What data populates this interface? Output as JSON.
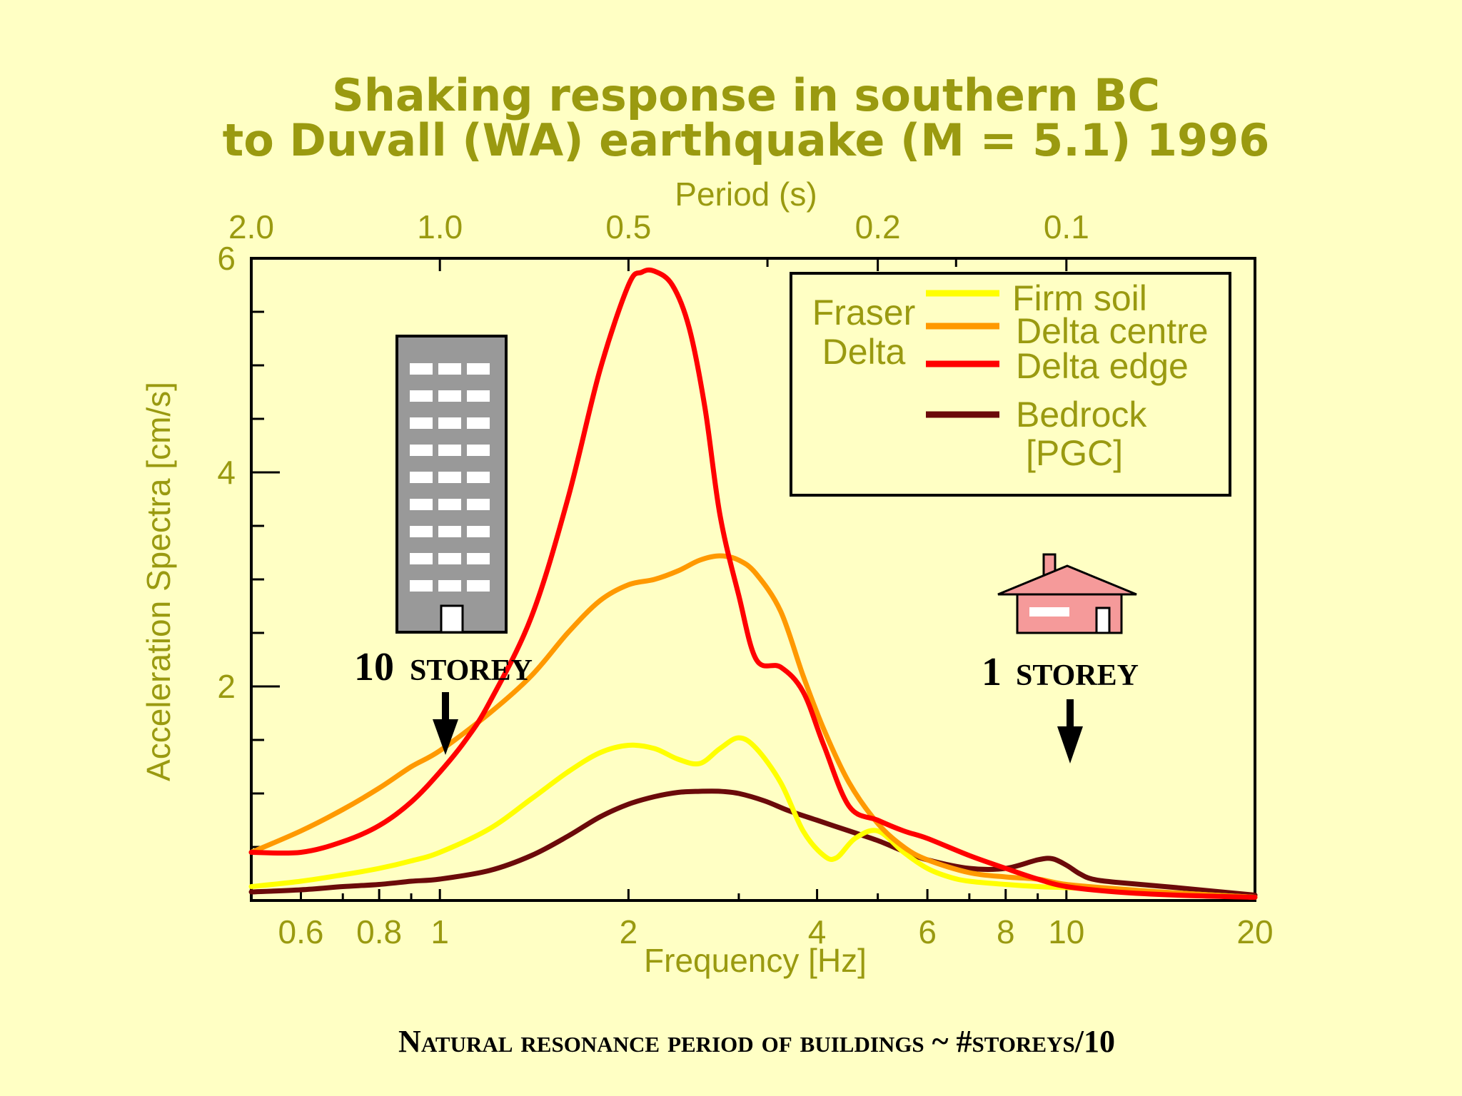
{
  "chart_data": {
    "type": "line",
    "title_line1": "Shaking response in southern BC",
    "title_line2": "to Duvall (WA) earthquake (M = 5.1) 1996",
    "xlabel": "Frequency [Hz]",
    "ylabel": "Acceleration Spectra [cm/s]",
    "top_axis_label": "Period (s)",
    "x_scale": "log",
    "xlim": [
      0.5,
      20
    ],
    "ylim": [
      0,
      6
    ],
    "x_ticks": [
      0.6,
      0.8,
      1,
      2,
      4,
      6,
      8,
      10,
      20
    ],
    "x_tick_labels": [
      "0.6",
      "0.8",
      "1",
      "2",
      "4",
      "6",
      "8",
      "10",
      "20"
    ],
    "y_ticks": [
      2,
      4,
      6
    ],
    "y_tick_labels": [
      "2",
      "4",
      "6"
    ],
    "top_ticks": [
      2.0,
      1.0,
      0.5,
      0.2,
      0.1
    ],
    "top_tick_labels": [
      "2.0",
      "1.0",
      "0.5",
      "0.2",
      "0.1"
    ],
    "legend": {
      "group_label_line1": "Fraser",
      "group_label_line2": "Delta",
      "bedrock_label_line1": "Bedrock",
      "bedrock_label_line2": "[PGC]"
    },
    "series": [
      {
        "name": "Firm soil",
        "color": "#ffff00",
        "x": [
          0.5,
          0.6,
          0.7,
          0.8,
          0.9,
          1.0,
          1.2,
          1.4,
          1.6,
          1.8,
          2.0,
          2.2,
          2.4,
          2.6,
          2.8,
          3.0,
          3.2,
          3.5,
          3.8,
          4.1,
          4.3,
          4.6,
          5.0,
          5.5,
          6.0,
          6.5,
          7.0,
          8.0,
          9.0,
          10.0,
          12.0,
          15.0,
          20.0
        ],
        "y": [
          0.13,
          0.18,
          0.24,
          0.3,
          0.37,
          0.45,
          0.67,
          0.95,
          1.2,
          1.38,
          1.45,
          1.42,
          1.32,
          1.28,
          1.42,
          1.52,
          1.42,
          1.1,
          0.65,
          0.42,
          0.4,
          0.58,
          0.65,
          0.45,
          0.3,
          0.22,
          0.18,
          0.15,
          0.13,
          0.12,
          0.1,
          0.07,
          0.03
        ]
      },
      {
        "name": "Delta centre",
        "color": "#ff9900",
        "x": [
          0.5,
          0.6,
          0.7,
          0.8,
          0.9,
          1.0,
          1.2,
          1.4,
          1.6,
          1.8,
          2.0,
          2.2,
          2.4,
          2.6,
          2.8,
          3.0,
          3.2,
          3.5,
          3.8,
          4.1,
          4.5,
          5.0,
          5.5,
          6.0,
          7.0,
          8.0,
          9.0,
          10.0,
          12.0,
          15.0,
          20.0
        ],
        "y": [
          0.45,
          0.65,
          0.85,
          1.05,
          1.25,
          1.4,
          1.75,
          2.1,
          2.5,
          2.8,
          2.95,
          3.0,
          3.08,
          3.18,
          3.22,
          3.18,
          3.05,
          2.7,
          2.1,
          1.6,
          1.1,
          0.72,
          0.5,
          0.38,
          0.26,
          0.22,
          0.2,
          0.15,
          0.11,
          0.07,
          0.03
        ]
      },
      {
        "name": "Delta edge",
        "color": "#ff0000",
        "x": [
          0.5,
          0.6,
          0.7,
          0.8,
          0.9,
          1.0,
          1.1,
          1.2,
          1.4,
          1.6,
          1.8,
          2.0,
          2.1,
          2.2,
          2.35,
          2.5,
          2.65,
          2.8,
          3.0,
          3.2,
          3.5,
          3.8,
          4.1,
          4.5,
          5.0,
          5.5,
          6.0,
          7.0,
          8.0,
          9.0,
          10.0,
          12.0,
          15.0,
          20.0
        ],
        "y": [
          0.45,
          0.45,
          0.55,
          0.7,
          0.92,
          1.2,
          1.5,
          1.85,
          2.65,
          3.75,
          4.95,
          5.75,
          5.87,
          5.88,
          5.75,
          5.35,
          4.6,
          3.6,
          2.85,
          2.25,
          2.18,
          1.95,
          1.45,
          0.88,
          0.75,
          0.65,
          0.58,
          0.42,
          0.3,
          0.2,
          0.13,
          0.08,
          0.05,
          0.03
        ]
      },
      {
        "name": "Bedrock",
        "color": "#6b0a0a",
        "x": [
          0.5,
          0.6,
          0.7,
          0.8,
          0.9,
          1.0,
          1.2,
          1.4,
          1.6,
          1.8,
          2.0,
          2.2,
          2.4,
          2.6,
          2.8,
          3.0,
          3.3,
          3.6,
          4.0,
          4.5,
          5.0,
          5.5,
          6.0,
          7.0,
          8.0,
          9.0,
          9.5,
          10.0,
          10.5,
          11.0,
          12.0,
          15.0,
          20.0
        ],
        "y": [
          0.08,
          0.1,
          0.13,
          0.15,
          0.18,
          0.2,
          0.28,
          0.42,
          0.6,
          0.78,
          0.9,
          0.97,
          1.01,
          1.02,
          1.02,
          1.0,
          0.93,
          0.84,
          0.75,
          0.65,
          0.56,
          0.46,
          0.38,
          0.3,
          0.3,
          0.38,
          0.39,
          0.33,
          0.25,
          0.2,
          0.17,
          0.12,
          0.05
        ]
      }
    ],
    "annotations": [
      {
        "text_number": "10",
        "text_word": "STOREY",
        "x": 1.0
      },
      {
        "text_number": "1",
        "text_word": "STOREY",
        "x": 10.0
      }
    ]
  },
  "footer": {
    "caption": "Natural resonance period of buildings ~ #storeys/10"
  }
}
